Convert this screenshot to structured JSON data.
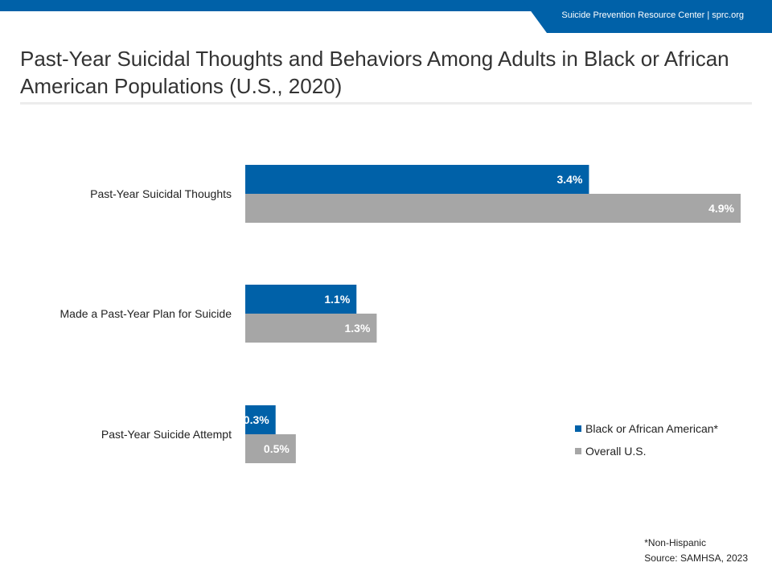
{
  "header": {
    "org_text": "Suicide Prevention Resource Center  | sprc.org",
    "brand_color": "#0061a8"
  },
  "title": "Past-Year Suicidal Thoughts and Behaviors Among Adults in Black or African American Populations (U.S., 2020)",
  "chart_data": {
    "type": "bar",
    "orientation": "horizontal",
    "categories": [
      "Past-Year Suicidal Thoughts",
      "Made a Past-Year Plan for Suicide",
      "Past-Year Suicide Attempt"
    ],
    "series": [
      {
        "name": "Black or African American*",
        "values": [
          3.4,
          1.1,
          0.3
        ],
        "labels": [
          "3.4%",
          "1.1%",
          "0.3%"
        ],
        "color": "#0061a8"
      },
      {
        "name": "Overall U.S.",
        "values": [
          4.9,
          1.3,
          0.5
        ],
        "labels": [
          "4.9%",
          "1.3%",
          "0.5%"
        ],
        "color": "#a6a6a6"
      }
    ],
    "xlim": [
      0,
      4.9
    ],
    "grid": false,
    "legend_position": "bottom-right"
  },
  "footnotes": {
    "note": "*Non-Hispanic",
    "source": "Source: SAMHSA, 2023"
  }
}
